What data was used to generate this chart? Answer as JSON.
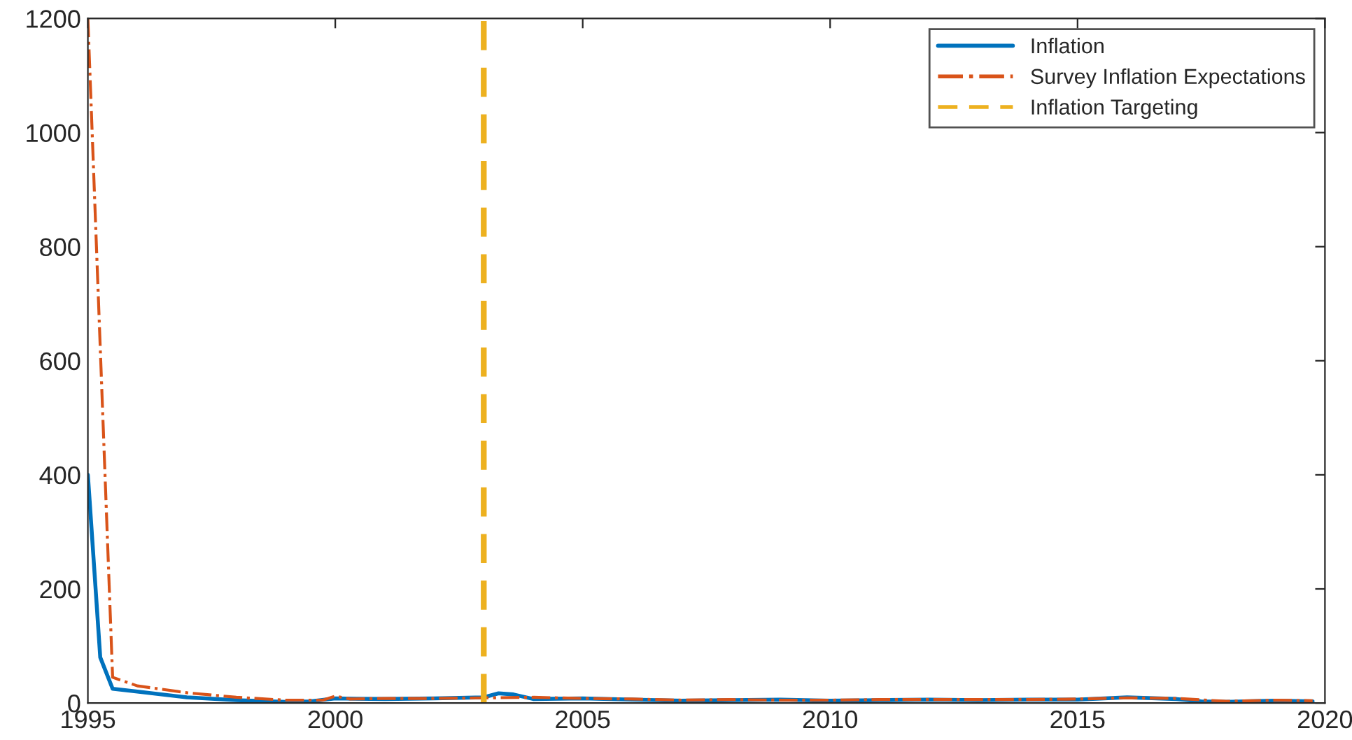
{
  "chart_data": {
    "type": "line",
    "series": [
      {
        "name": "Inflation",
        "color": "#0072bd",
        "line_style": "solid",
        "x": [
          1995,
          1995.25,
          1995.5,
          1996,
          1997,
          1998,
          1999,
          1999.5,
          2000,
          2001,
          2002,
          2003,
          2003.3,
          2003.6,
          2004,
          2005,
          2006,
          2007,
          2008,
          2009,
          2010,
          2011,
          2012,
          2013,
          2014,
          2015,
          2016,
          2017,
          2017.5,
          2018,
          2019,
          2019.75
        ],
        "values": [
          400,
          80,
          25,
          20,
          10,
          5,
          2,
          3,
          8,
          7,
          8,
          10,
          17,
          15,
          7,
          8,
          6,
          4,
          5,
          6,
          4,
          5,
          6,
          5,
          6,
          6,
          10,
          7,
          3,
          2,
          4,
          3
        ]
      },
      {
        "name": "Survey Inflation Expectations",
        "color": "#d95319",
        "line_style": "dashdot",
        "x": [
          1995,
          1995.5,
          1996,
          1997,
          1998,
          1999,
          1999.75,
          2000,
          2000.3,
          2001,
          2002,
          2003,
          2004,
          2005,
          2006,
          2007,
          2008,
          2009,
          2010,
          2011,
          2012,
          2013,
          2014,
          2015,
          2016,
          2017,
          2018,
          2019,
          2019.75
        ],
        "values": [
          1200,
          45,
          30,
          18,
          10,
          5,
          5,
          12,
          7,
          8,
          8,
          9,
          10,
          8,
          7,
          5,
          6,
          5,
          5,
          6,
          6,
          6,
          6,
          7,
          9,
          8,
          3,
          5,
          4
        ]
      },
      {
        "name": "Inflation Targeting",
        "color": "#edb120",
        "line_style": "dashed",
        "x": [
          2003,
          2003
        ],
        "values": [
          0,
          1200
        ]
      }
    ],
    "xlim": [
      1995,
      2020
    ],
    "xticks": [
      1995,
      2000,
      2005,
      2010,
      2015,
      2020
    ],
    "ylim": [
      0,
      1200
    ],
    "yticks": [
      0,
      200,
      400,
      600,
      800,
      1000,
      1200
    ],
    "grid": false,
    "legend": "top right"
  }
}
